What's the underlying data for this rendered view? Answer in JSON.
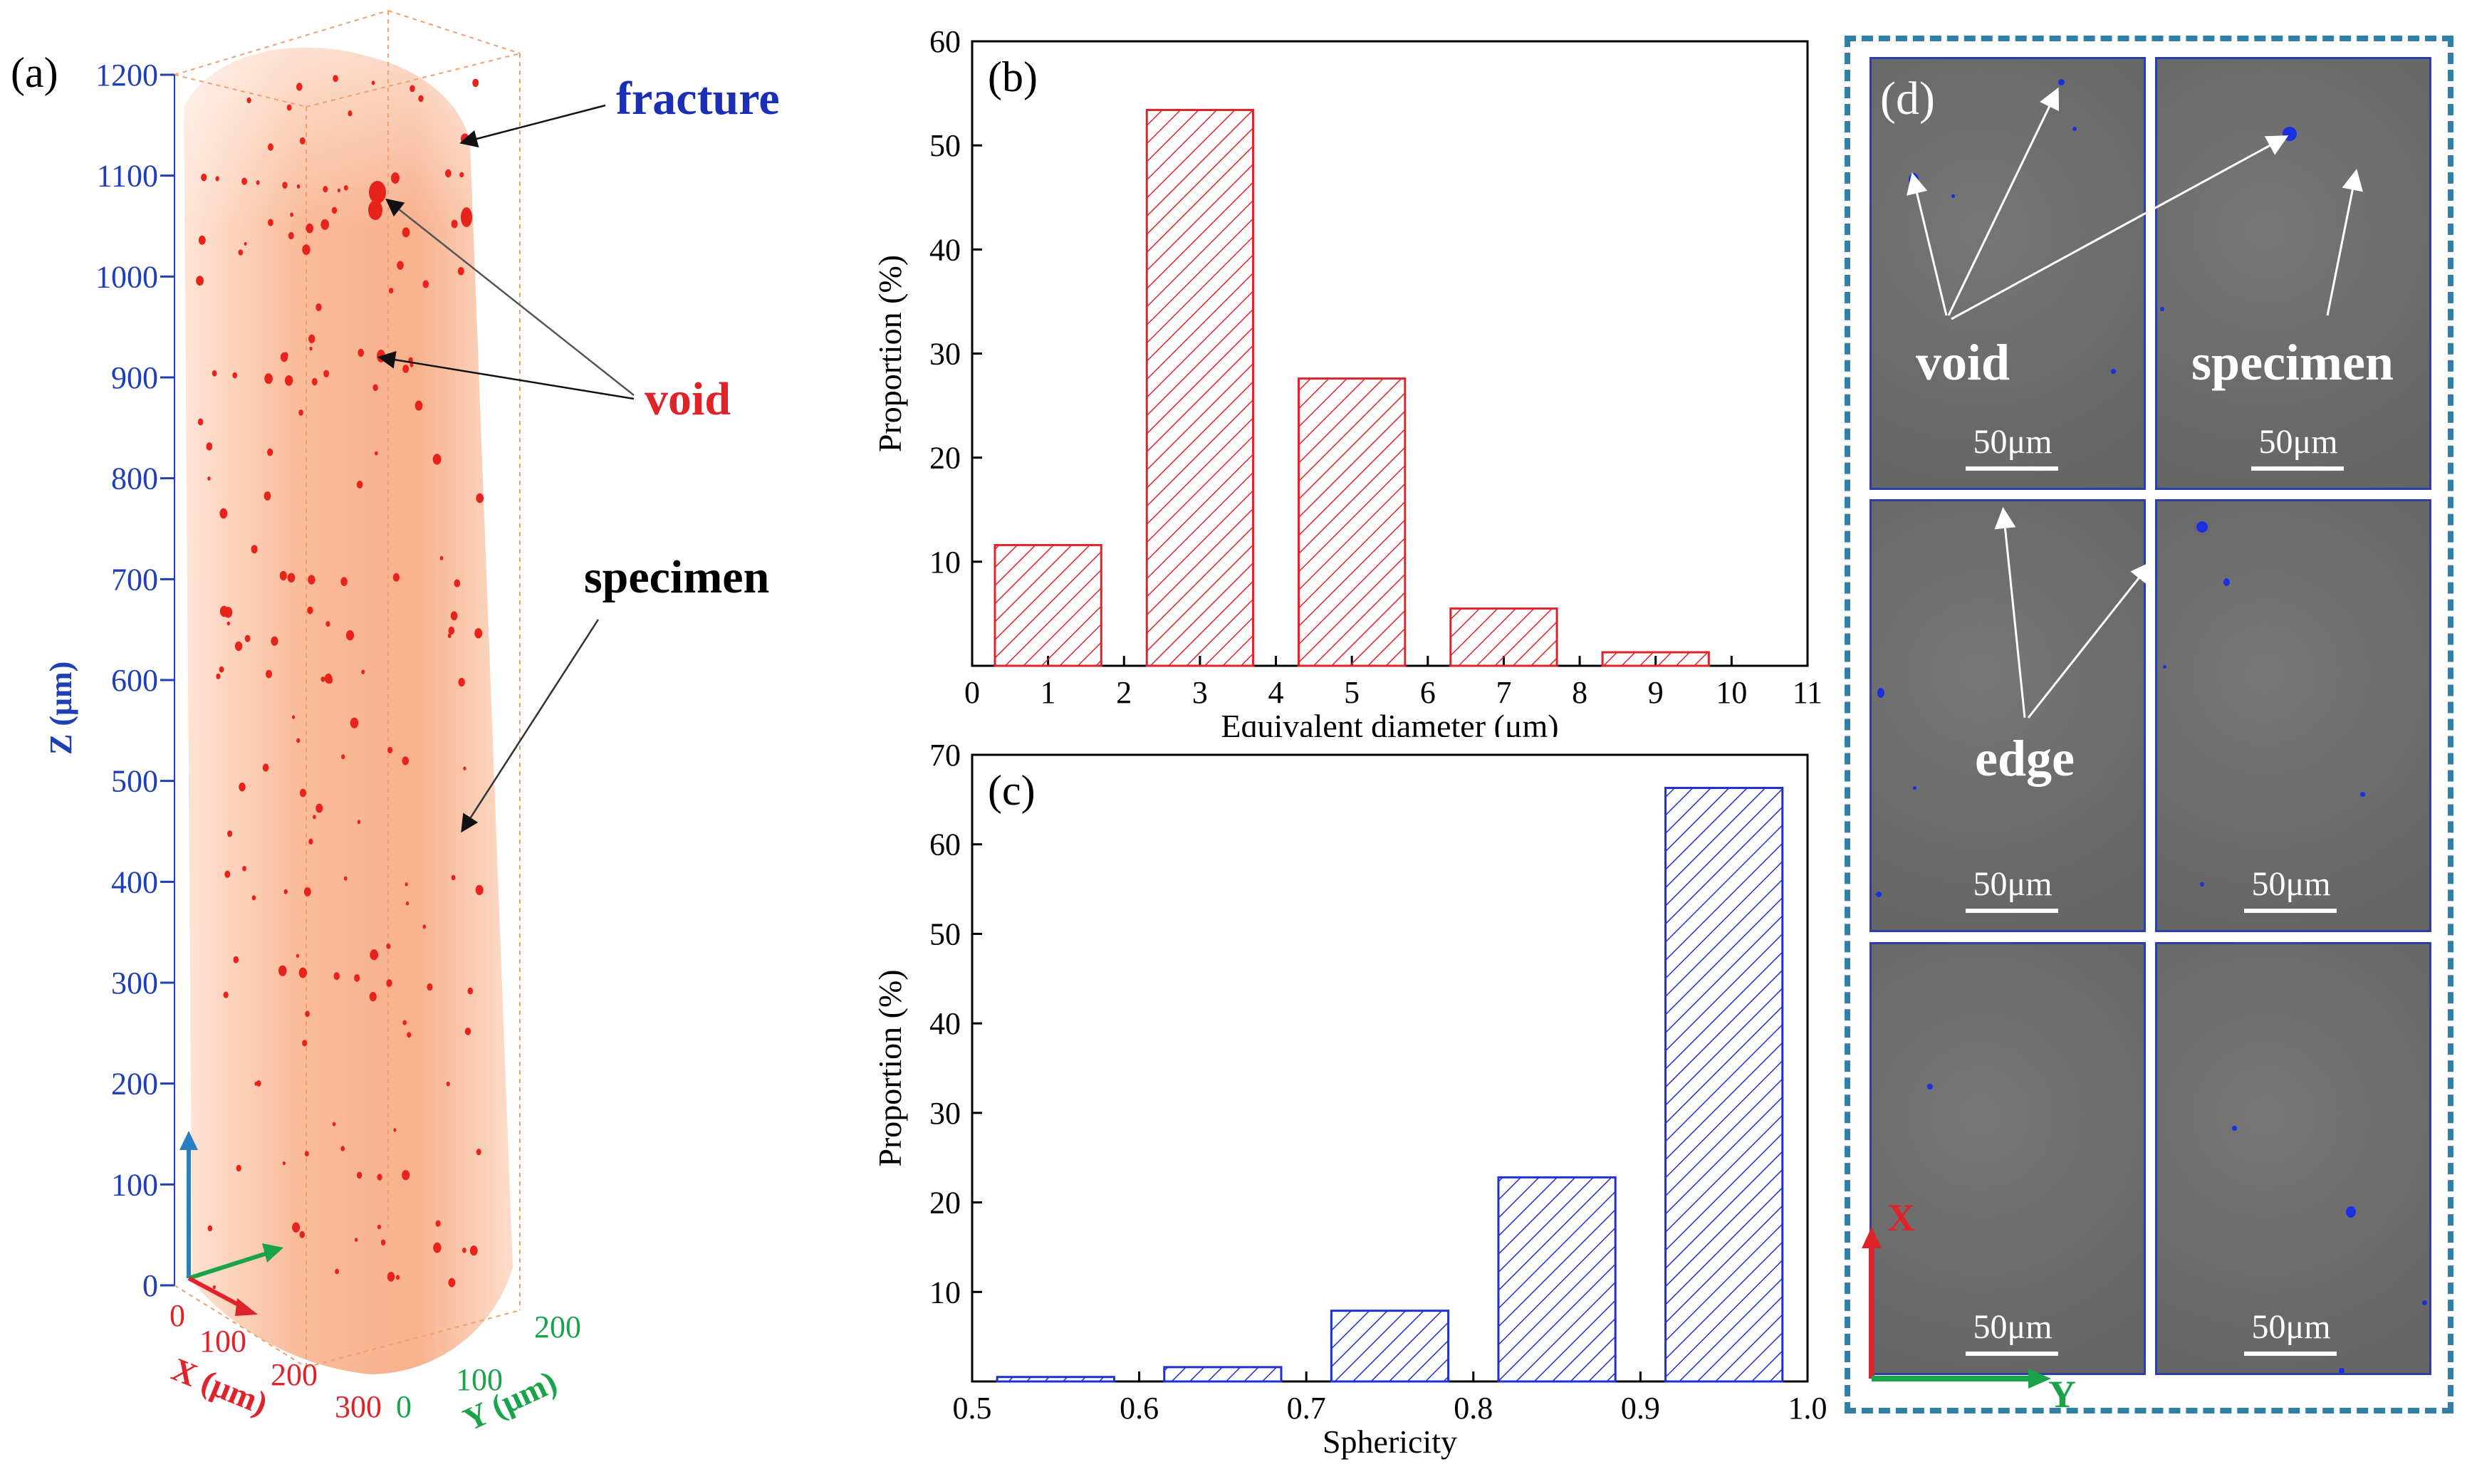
{
  "panel_a": {
    "label": "(a)",
    "z_axis_label": "Z (μm)",
    "x_axis_label": "X (μm)",
    "y_axis_label": "Y (μm)",
    "z_ticks": [
      "1200",
      "1100",
      "1000",
      "900",
      "800",
      "700",
      "600",
      "500",
      "400",
      "300",
      "200",
      "100",
      "0"
    ],
    "x_ticks": [
      "0",
      "100",
      "200",
      "300"
    ],
    "y_ticks": [
      "0",
      "100",
      "200"
    ],
    "annotations": {
      "fracture": "fracture",
      "void": "void",
      "specimen": "specimen"
    },
    "colors": {
      "specimen": "#f9b48e",
      "void": "#e8231c",
      "z_axis": "#1f3fb5",
      "x_axis": "#e0232a",
      "y_axis": "#1aa34a"
    }
  },
  "chart_data": [
    {
      "id": "b",
      "type": "bar",
      "label": "(b)",
      "xlabel": "Equivalent diameter (μm)",
      "ylabel": "Proportion (%)",
      "x": [
        1,
        3,
        5,
        7,
        9
      ],
      "values": [
        11.6,
        53.4,
        27.6,
        5.5,
        1.3
      ],
      "xlim": [
        0,
        11
      ],
      "ylim": [
        0,
        60
      ],
      "xticks": [
        "0",
        "1",
        "2",
        "3",
        "4",
        "5",
        "6",
        "7",
        "8",
        "9",
        "10",
        "11"
      ],
      "yticks": [
        "10",
        "20",
        "30",
        "40",
        "50",
        "60"
      ],
      "color": "#e0232a",
      "hatch": "diagonal"
    },
    {
      "id": "c",
      "type": "bar",
      "label": "(c)",
      "xlabel": "Sphericity",
      "ylabel": "Proportion (%)",
      "x": [
        0.55,
        0.65,
        0.75,
        0.85,
        0.95
      ],
      "values": [
        0.5,
        1.6,
        7.9,
        22.8,
        66.3
      ],
      "xlim": [
        0.5,
        1.0
      ],
      "ylim": [
        0,
        70
      ],
      "xticks": [
        "0.5",
        "0.6",
        "0.7",
        "0.8",
        "0.9",
        "1.0"
      ],
      "yticks": [
        "10",
        "20",
        "30",
        "40",
        "50",
        "60",
        "70"
      ],
      "color": "#1f2fd6",
      "hatch": "diagonal"
    }
  ],
  "panel_d": {
    "label": "(d)",
    "scale_bar": "50μm",
    "annotations": {
      "void": "void",
      "specimen": "specimen",
      "edge": "edge"
    },
    "axis_x": "X",
    "axis_y": "Y",
    "colors": {
      "border": "#2f7fa6",
      "void_dot": "#1a2fe0"
    }
  }
}
